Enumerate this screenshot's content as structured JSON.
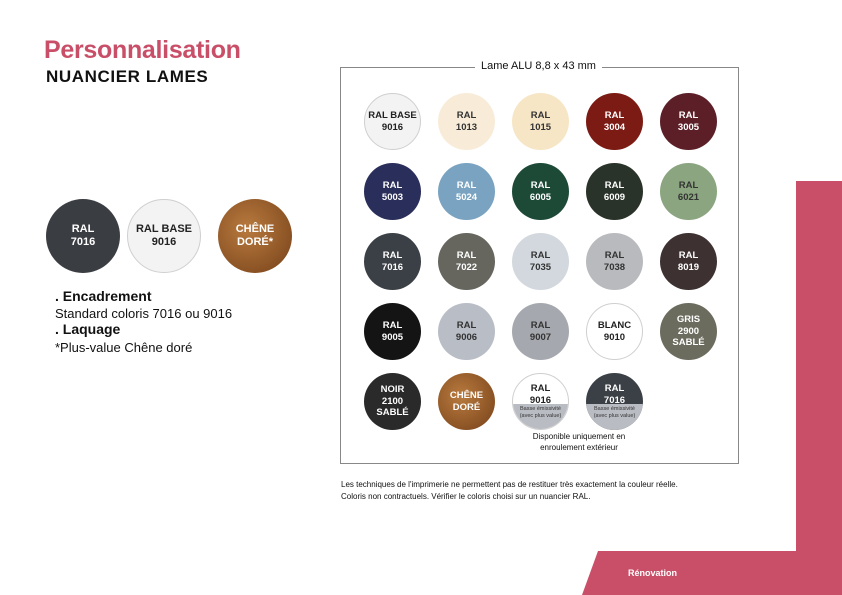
{
  "header": {
    "title": "Personnalisation",
    "subtitle": "NUANCIER LAMES"
  },
  "frame_colors": [
    {
      "label": "RAL\n7016",
      "color": "#3a3d42",
      "text": "#ffffff"
    },
    {
      "label": "RAL BASE\n9016",
      "color": "#f3f3f3",
      "text": "#222222",
      "outline": true
    },
    {
      "label": "CHÊNE\nDORÉ*",
      "color": "wood",
      "text": "#ffffff"
    }
  ],
  "left_info": {
    "encadrement_heading": ". Encadrement",
    "encadrement_text": "Standard coloris 7016 ou 9016",
    "laquage_heading": ". Laquage",
    "laquage_text": "*Plus-value Chêne doré"
  },
  "swatch_box": {
    "title": "Lame ALU 8,8 x 43 mm",
    "note": "Disponible uniquement en\nenroulement extérieur"
  },
  "swatches": [
    {
      "label": "RAL BASE\n9016",
      "color": "#f3f3f3",
      "text": "#222",
      "outline": true
    },
    {
      "label": "RAL\n1013",
      "color": "#f8ecd8",
      "text": "#333"
    },
    {
      "label": "RAL\n1015",
      "color": "#f7e6c6",
      "text": "#333"
    },
    {
      "label": "RAL\n3004",
      "color": "#7c1a14",
      "text": "#fff"
    },
    {
      "label": "RAL\n3005",
      "color": "#5c1f27",
      "text": "#fff"
    },
    {
      "label": "RAL\n5003",
      "color": "#2a2e5a",
      "text": "#fff"
    },
    {
      "label": "RAL\n5024",
      "color": "#79a3c0",
      "text": "#fff"
    },
    {
      "label": "RAL\n6005",
      "color": "#1c4a36",
      "text": "#fff"
    },
    {
      "label": "RAL\n6009",
      "color": "#2a3329",
      "text": "#fff"
    },
    {
      "label": "RAL\n6021",
      "color": "#8aa57f",
      "text": "#333"
    },
    {
      "label": "RAL\n7016",
      "color": "#3b4046",
      "text": "#fff"
    },
    {
      "label": "RAL\n7022",
      "color": "#66665f",
      "text": "#fff"
    },
    {
      "label": "RAL\n7035",
      "color": "#d2d8dd",
      "text": "#333"
    },
    {
      "label": "RAL\n7038",
      "color": "#b8babd",
      "text": "#333"
    },
    {
      "label": "RAL\n8019",
      "color": "#3d3131",
      "text": "#fff"
    },
    {
      "label": "RAL\n9005",
      "color": "#141414",
      "text": "#fff"
    },
    {
      "label": "RAL\n9006",
      "color": "#b8bdc6",
      "text": "#333"
    },
    {
      "label": "RAL\n9007",
      "color": "#a5a8ae",
      "text": "#333"
    },
    {
      "label": "BLANC\n9010",
      "color": "#ffffff",
      "text": "#222",
      "outline": true
    },
    {
      "label": "GRIS\n2900\nSABLÉ",
      "color": "#6b6b5e",
      "text": "#fff"
    },
    {
      "label": "NOIR\n2100\nSABLÉ",
      "color": "#2a2a2a",
      "text": "#fff"
    },
    {
      "label": "CHÊNE\nDORÉ",
      "color": "wood",
      "text": "#fff"
    },
    {
      "label": "RAL\n9016",
      "color": "#ffffff",
      "text": "#222",
      "outline": true,
      "sub": "Basse émissivité\n(avec plus value)"
    },
    {
      "label": "RAL\n7016",
      "color": "#3b4046",
      "text": "#fff",
      "sub": "Basse émissivité\n(avec plus value)"
    }
  ],
  "disclaimer": {
    "line1": "Les techniques de l'imprimerie ne permettent pas de restituer très exactement la couleur réelle.",
    "line2": "Coloris non contractuels. Vérifier le coloris choisi sur un nuancier RAL."
  },
  "footer": {
    "label": "Rénovation"
  },
  "colors": {
    "accent": "#c94f68"
  }
}
